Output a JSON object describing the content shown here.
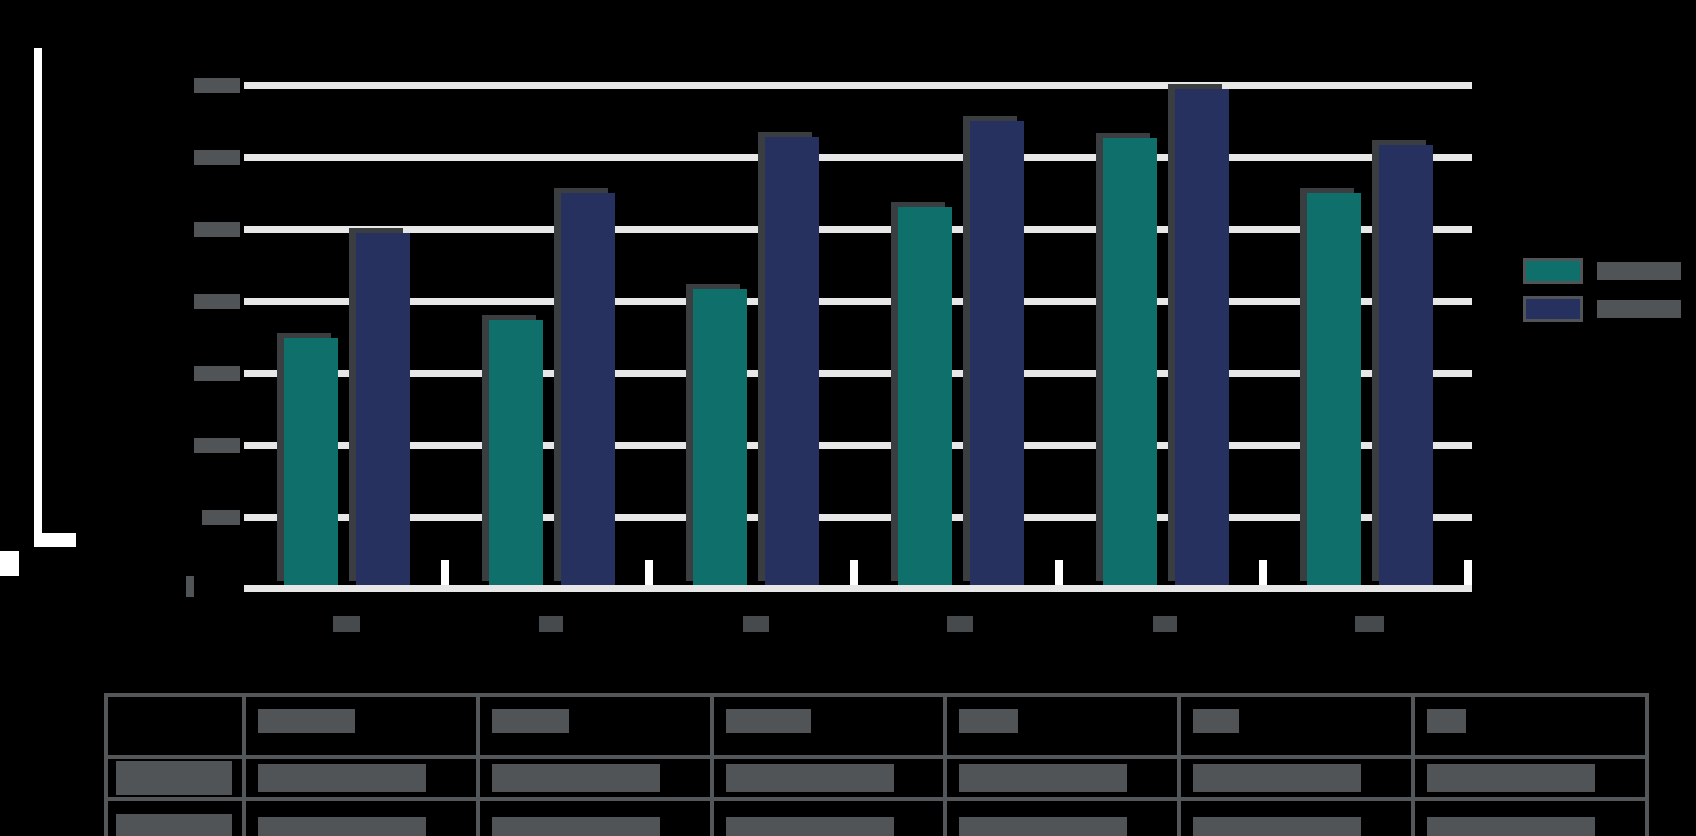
{
  "colors": {
    "series1": "#0E6F6B",
    "series2": "#27315F",
    "gridline": "#E7E7E7",
    "redaction": "#515456",
    "background": "#000000",
    "table_border": "#54575A"
  },
  "legend": {
    "items": [
      {
        "label": "2019-20",
        "color": "#0E6F6B"
      },
      {
        "label": "2020-21",
        "color": "#27315F"
      }
    ]
  },
  "chart_data": {
    "type": "bar",
    "title": "",
    "xlabel": "",
    "ylabel": "",
    "categories": [
      "Dec",
      "Jan",
      "Feb",
      "Mar",
      "Apr",
      "May"
    ],
    "series": [
      {
        "name": "2019-20",
        "color": "#0E6F6B",
        "values": [
          17200,
          18500,
          20600,
          26300,
          31100,
          27300
        ]
      },
      {
        "name": "2020-21",
        "color": "#27315F",
        "values": [
          24500,
          27300,
          31200,
          32300,
          34500,
          30600
        ]
      }
    ],
    "ylim": [
      0,
      35000
    ],
    "y_ticks": [
      0,
      5000,
      10000,
      15000,
      20000,
      25000,
      30000,
      35000
    ],
    "y_tick_labels": [
      "0",
      "5,000",
      "10,000",
      "15,000",
      "20,000",
      "25,000",
      "30,000",
      "35,000"
    ],
    "grid": true,
    "legend_position": "right",
    "note": "all text redacted as gray blocks in source image; values estimated from gridlines"
  },
  "table": {
    "corner": "",
    "headers": [
      "December",
      "January",
      "February",
      "March",
      "April",
      "May"
    ],
    "rows": [
      {
        "header": "2019-20 School Year",
        "cells": [
          "17,200",
          "18,500",
          "20,600",
          "26,300",
          "31,100",
          "27,300"
        ]
      },
      {
        "header": "2020-21 School Year",
        "cells": [
          "24,500",
          "27,300",
          "31,200",
          "32,300",
          "34,500",
          "30,600"
        ]
      }
    ]
  }
}
